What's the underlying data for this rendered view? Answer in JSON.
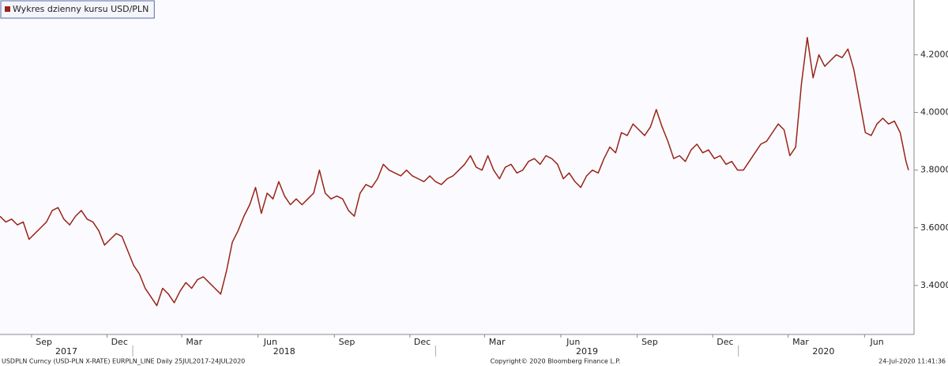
{
  "chart_data": {
    "type": "line",
    "series": [
      {
        "name": "Wykres dzienny kursu USD/PLN",
        "color": "#9a2317",
        "values": [
          3.64,
          3.62,
          3.63,
          3.61,
          3.62,
          3.56,
          3.58,
          3.6,
          3.62,
          3.66,
          3.67,
          3.63,
          3.61,
          3.64,
          3.66,
          3.63,
          3.62,
          3.59,
          3.54,
          3.56,
          3.58,
          3.57,
          3.52,
          3.47,
          3.44,
          3.39,
          3.36,
          3.33,
          3.39,
          3.37,
          3.34,
          3.38,
          3.41,
          3.39,
          3.42,
          3.43,
          3.41,
          3.39,
          3.37,
          3.45,
          3.55,
          3.59,
          3.64,
          3.68,
          3.74,
          3.65,
          3.72,
          3.7,
          3.76,
          3.71,
          3.68,
          3.7,
          3.68,
          3.7,
          3.72,
          3.8,
          3.72,
          3.7,
          3.71,
          3.7,
          3.66,
          3.64,
          3.72,
          3.75,
          3.74,
          3.77,
          3.82,
          3.8,
          3.79,
          3.78,
          3.8,
          3.78,
          3.77,
          3.76,
          3.78,
          3.76,
          3.75,
          3.77,
          3.78,
          3.8,
          3.82,
          3.85,
          3.81,
          3.8,
          3.85,
          3.8,
          3.77,
          3.81,
          3.82,
          3.79,
          3.8,
          3.83,
          3.84,
          3.82,
          3.85,
          3.84,
          3.82,
          3.77,
          3.79,
          3.76,
          3.74,
          3.78,
          3.8,
          3.79,
          3.84,
          3.88,
          3.86,
          3.93,
          3.92,
          3.96,
          3.94,
          3.92,
          3.95,
          4.01,
          3.95,
          3.9,
          3.84,
          3.85,
          3.83,
          3.87,
          3.89,
          3.86,
          3.87,
          3.84,
          3.85,
          3.82,
          3.83,
          3.8,
          3.8,
          3.83,
          3.86,
          3.89,
          3.9,
          3.93,
          3.96,
          3.94,
          3.85,
          3.88,
          4.1,
          4.26,
          4.12,
          4.2,
          4.16,
          4.18,
          4.2,
          4.19,
          4.22,
          4.15,
          4.04,
          3.93,
          3.92,
          3.96,
          3.98,
          3.96,
          3.97,
          3.93,
          3.83,
          3.8
        ]
      }
    ],
    "x": [
      "2017-07-25",
      "2017-08-01",
      "2017-08-08",
      "2017-08-15",
      "2017-08-22",
      "2017-08-29",
      "2017-09-05",
      "2017-09-12",
      "2017-09-19",
      "2017-09-26",
      "2017-10-03",
      "2017-10-10",
      "2017-10-17",
      "2017-10-24",
      "2017-10-31",
      "2017-11-07",
      "2017-11-14",
      "2017-11-21",
      "2017-11-28",
      "2017-12-05",
      "2017-12-12",
      "2017-12-19",
      "2017-12-26",
      "2018-01-02",
      "2018-01-09",
      "2018-01-16",
      "2018-01-23",
      "2018-01-30",
      "2018-02-06",
      "2018-02-13",
      "2018-02-20",
      "2018-02-27",
      "2018-03-06",
      "2018-03-13",
      "2018-03-20",
      "2018-03-27",
      "2018-04-03",
      "2018-04-10",
      "2018-04-17",
      "2018-04-24",
      "2018-05-01",
      "2018-05-08",
      "2018-05-15",
      "2018-05-22",
      "2018-05-29",
      "2018-06-05",
      "2018-06-12",
      "2018-06-19",
      "2018-06-26",
      "2018-07-03",
      "2018-07-10",
      "2018-07-17",
      "2018-07-24",
      "2018-07-31",
      "2018-08-07",
      "2018-08-14",
      "2018-08-21",
      "2018-08-28",
      "2018-09-04",
      "2018-09-11",
      "2018-09-18",
      "2018-09-25",
      "2018-10-02",
      "2018-10-09",
      "2018-10-16",
      "2018-10-23",
      "2018-10-30",
      "2018-11-06",
      "2018-11-13",
      "2018-11-20",
      "2018-11-27",
      "2018-12-04",
      "2018-12-11",
      "2018-12-18",
      "2018-12-25",
      "2019-01-01",
      "2019-01-08",
      "2019-01-15",
      "2019-01-22",
      "2019-01-29",
      "2019-02-05",
      "2019-02-12",
      "2019-02-19",
      "2019-02-26",
      "2019-03-05",
      "2019-03-12",
      "2019-03-19",
      "2019-03-26",
      "2019-04-02",
      "2019-04-09",
      "2019-04-16",
      "2019-04-23",
      "2019-04-30",
      "2019-05-07",
      "2019-05-14",
      "2019-05-21",
      "2019-05-28",
      "2019-06-04",
      "2019-06-11",
      "2019-06-18",
      "2019-06-25",
      "2019-07-02",
      "2019-07-09",
      "2019-07-16",
      "2019-07-23",
      "2019-07-30",
      "2019-08-06",
      "2019-08-13",
      "2019-08-20",
      "2019-08-27",
      "2019-09-03",
      "2019-09-10",
      "2019-09-17",
      "2019-09-24",
      "2019-10-01",
      "2019-10-08",
      "2019-10-15",
      "2019-10-22",
      "2019-10-29",
      "2019-11-05",
      "2019-11-12",
      "2019-11-19",
      "2019-11-26",
      "2019-12-03",
      "2019-12-10",
      "2019-12-17",
      "2019-12-24",
      "2019-12-31",
      "2020-01-07",
      "2020-01-14",
      "2020-01-21",
      "2020-01-28",
      "2020-02-04",
      "2020-02-11",
      "2020-02-18",
      "2020-02-25",
      "2020-03-03",
      "2020-03-10",
      "2020-03-17",
      "2020-03-24",
      "2020-03-31",
      "2020-04-07",
      "2020-04-14",
      "2020-04-21",
      "2020-04-28",
      "2020-05-05",
      "2020-05-12",
      "2020-05-19",
      "2020-05-26",
      "2020-06-02",
      "2020-06-09",
      "2020-06-16",
      "2020-06-23",
      "2020-06-30",
      "2020-07-07",
      "2020-07-14",
      "2020-07-21",
      "2020-07-24"
    ],
    "xlim": [
      "2017-07-25",
      "2020-07-24"
    ],
    "xticks": [
      {
        "value": "2017-09-01",
        "label": "Sep"
      },
      {
        "value": "2017-12-01",
        "label": "Dec"
      },
      {
        "value": "2018-03-01",
        "label": "Mar"
      },
      {
        "value": "2018-06-01",
        "label": "Jun"
      },
      {
        "value": "2018-09-01",
        "label": "Sep"
      },
      {
        "value": "2018-12-01",
        "label": "Dec"
      },
      {
        "value": "2019-03-01",
        "label": "Mar"
      },
      {
        "value": "2019-06-01",
        "label": "Jun"
      },
      {
        "value": "2019-09-01",
        "label": "Sep"
      },
      {
        "value": "2019-12-01",
        "label": "Dec"
      },
      {
        "value": "2020-03-01",
        "label": "Mar"
      },
      {
        "value": "2020-06-01",
        "label": "Jun"
      }
    ],
    "year_ticks": [
      {
        "value": "2017-07-25",
        "label": "2017"
      },
      {
        "value": "2018-01-01",
        "label": "2018"
      },
      {
        "value": "2019-01-01",
        "label": "2019"
      },
      {
        "value": "2020-01-01",
        "label": "2020"
      }
    ],
    "ylim": [
      3.23,
      4.39
    ],
    "yticks": [
      {
        "value": 3.4,
        "label": "3.4000"
      },
      {
        "value": 3.6,
        "label": "3.6000"
      },
      {
        "value": 3.8,
        "label": "3.8000"
      },
      {
        "value": 4.0,
        "label": "4.0000"
      },
      {
        "value": 4.2,
        "label": "4.2000"
      }
    ],
    "grid": false,
    "legend": "upper left",
    "source": "USDPLN Curncy (USD-PLN X-RATE) EURPLN_LINE  Daily 25JUL2017-24JUL2020",
    "copyright": "Copyright© 2020 Bloomberg Finance L.P.",
    "timestamp": "24-Jul-2020 11:41:36"
  }
}
